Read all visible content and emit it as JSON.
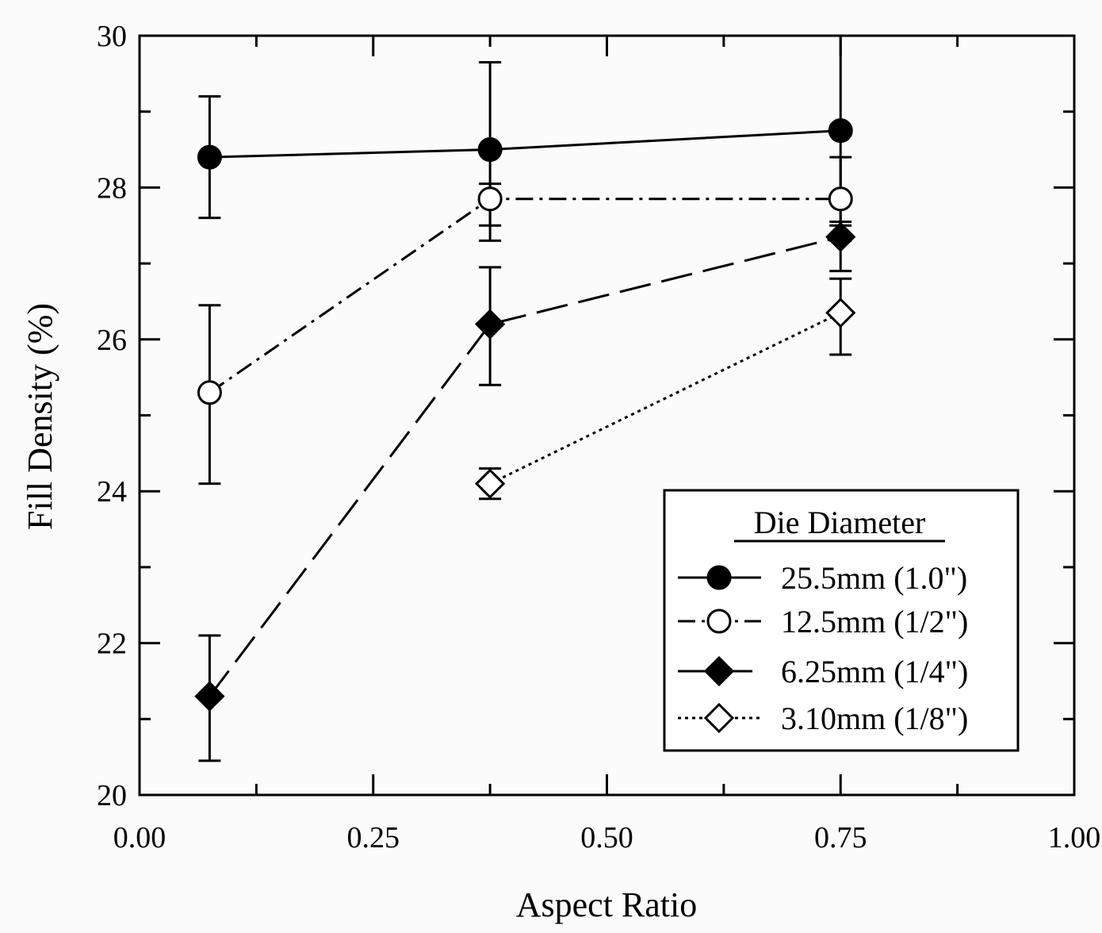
{
  "chart_data": {
    "type": "scatter",
    "xlabel": "Aspect Ratio",
    "ylabel": "Fill Density (%)",
    "xlim": [
      0.0,
      1.0
    ],
    "ylim": [
      20,
      30
    ],
    "xticks": [
      "0.00",
      "0.25",
      "0.50",
      "0.75",
      "1.00"
    ],
    "yticks": [
      "20",
      "22",
      "24",
      "26",
      "28",
      "30"
    ],
    "x_minor_step": 0.125,
    "y_minor_step": 1,
    "grid": false,
    "legend": {
      "title": "Die Diameter",
      "placement": "lower-right"
    },
    "series": [
      {
        "name": "25.5mm (1.0\")",
        "marker": "filled-circle",
        "line": "solid",
        "x": [
          0.075,
          0.375,
          0.75
        ],
        "y": [
          28.4,
          28.5,
          28.75
        ],
        "err_low": [
          27.6,
          27.5,
          27.5
        ],
        "err_high": [
          29.2,
          29.65,
          30.0
        ]
      },
      {
        "name": "12.5mm (1/2\")",
        "marker": "open-circle",
        "line": "dash-dot",
        "x": [
          0.075,
          0.375,
          0.75
        ],
        "y": [
          25.3,
          27.85,
          27.85
        ],
        "err_low": [
          24.1,
          27.3,
          27.3
        ],
        "err_high": [
          26.45,
          28.05,
          28.4
        ]
      },
      {
        "name": "6.25mm (1/4\")",
        "marker": "filled-diamond",
        "line": "long-dash",
        "x": [
          0.075,
          0.375,
          0.75
        ],
        "y": [
          21.3,
          26.2,
          27.35
        ],
        "err_low": [
          20.45,
          25.4,
          26.9
        ],
        "err_high": [
          22.1,
          26.95,
          27.55
        ]
      },
      {
        "name": "3.10mm (1/8\")",
        "marker": "open-diamond",
        "line": "dotted",
        "x": [
          0.375,
          0.75
        ],
        "y": [
          24.1,
          26.35
        ],
        "err_low": [
          23.9,
          25.8
        ],
        "err_high": [
          24.3,
          26.8
        ]
      }
    ]
  }
}
